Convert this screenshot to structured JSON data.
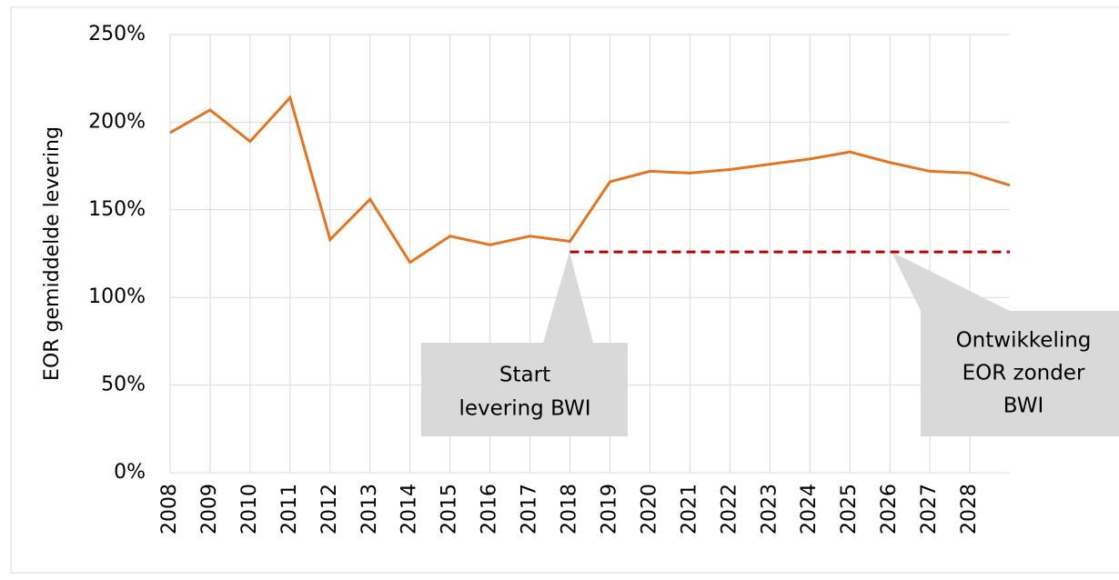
{
  "chart_data": {
    "type": "line",
    "y_label": "EOR gemiddelde levering",
    "x": [
      2008,
      2009,
      2010,
      2011,
      2012,
      2013,
      2014,
      2015,
      2016,
      2017,
      2018,
      2019,
      2020,
      2021,
      2022,
      2023,
      2024,
      2025,
      2026,
      2027,
      2028,
      2029
    ],
    "xlim": [
      2008,
      2029
    ],
    "xticks": [
      2008,
      2009,
      2010,
      2011,
      2012,
      2013,
      2014,
      2015,
      2016,
      2017,
      2018,
      2019,
      2020,
      2021,
      2022,
      2023,
      2024,
      2025,
      2026,
      2027,
      2028
    ],
    "ylim": [
      0,
      250
    ],
    "yticks": [
      {
        "value": 0,
        "label": "0%"
      },
      {
        "value": 50,
        "label": "50%"
      },
      {
        "value": 100,
        "label": "100%"
      },
      {
        "value": 150,
        "label": "150%"
      },
      {
        "value": 200,
        "label": "200%"
      },
      {
        "value": 250,
        "label": "250%"
      }
    ],
    "grid": true,
    "series": [
      {
        "color": "#e37522",
        "values": [
          194,
          207,
          189,
          214,
          133,
          156,
          120,
          135,
          130,
          135,
          132,
          166,
          172,
          171,
          173,
          176,
          179,
          183,
          177,
          172,
          171,
          164
        ]
      },
      {
        "color": "#c00000",
        "dashed": true,
        "values": [
          null,
          null,
          null,
          null,
          null,
          null,
          null,
          null,
          null,
          null,
          126,
          126,
          126,
          126,
          126,
          126,
          126,
          126,
          126,
          126,
          126,
          126
        ]
      }
    ],
    "annotations": [
      {
        "lines": [
          "Start",
          "levering BWI"
        ]
      },
      {
        "lines": [
          "Ontwikkeling",
          "EOR zonder",
          "BWI"
        ]
      }
    ]
  }
}
